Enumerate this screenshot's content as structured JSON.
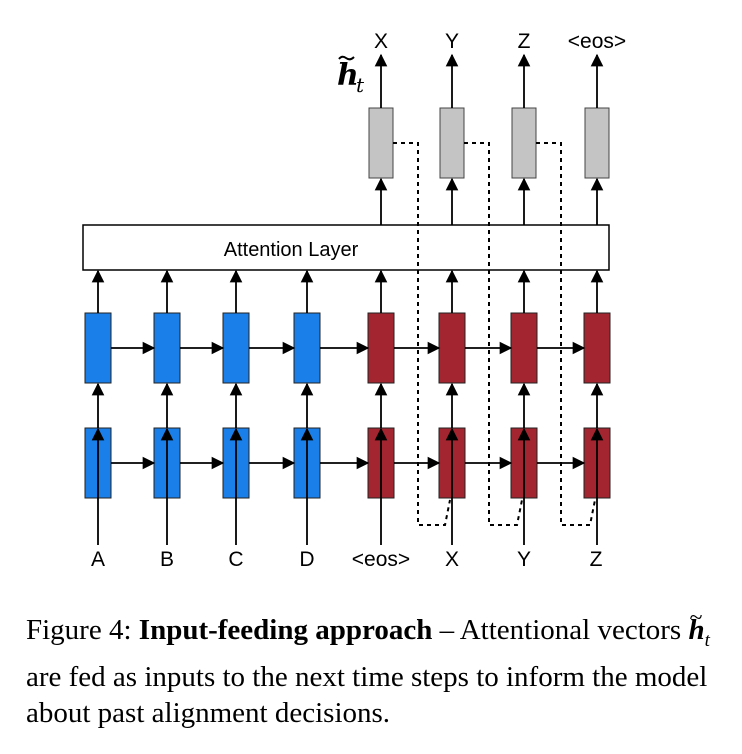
{
  "diagram": {
    "attention_label": "Attention Layer",
    "ht_symbol": "h",
    "ht_subscript": "t",
    "source_inputs": [
      "A",
      "B",
      "C",
      "D"
    ],
    "target_inputs": [
      "<eos>",
      "X",
      "Y",
      "Z"
    ],
    "target_outputs": [
      "X",
      "Y",
      "Z",
      "<eos>"
    ],
    "colors": {
      "encoder": "#1a7fe8",
      "decoder": "#a3252f",
      "attentional": "#c4c4c4"
    }
  },
  "caption": {
    "prefix": "Figure 4: ",
    "bold": "Input-feeding approach",
    "middle": " – Attentional vectors ",
    "ht_symbol": "h",
    "ht_subscript": "t",
    "suffix": " are fed as inputs to the next time steps to inform the model about past alignment decisions."
  }
}
